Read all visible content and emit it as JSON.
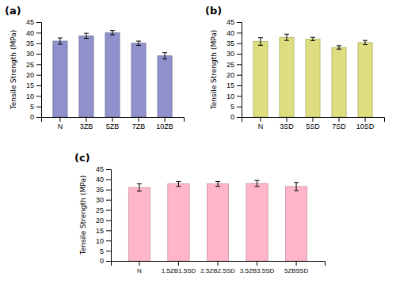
{
  "chart_data": [
    {
      "type": "bar",
      "title": "(a)",
      "ylabel": "Tensile Strength (MPa)",
      "categories": [
        "N",
        "3ZB",
        "5ZB",
        "7ZB",
        "10ZB"
      ],
      "values": [
        36,
        38.5,
        40,
        35,
        29
      ],
      "errors": [
        1.5,
        1.2,
        1.0,
        1.0,
        1.5
      ],
      "color": "#9090CC",
      "ylim": [
        0,
        45
      ],
      "yticks": [
        0,
        5,
        10,
        15,
        20,
        25,
        30,
        35,
        40,
        45
      ]
    },
    {
      "type": "bar",
      "title": "(b)",
      "ylabel": "Tensile Strength (MPa)",
      "categories": [
        "N",
        "3SD",
        "5SD",
        "7SD",
        "10SD"
      ],
      "values": [
        35.8,
        37.8,
        37.0,
        33.0,
        35.3
      ],
      "errors": [
        1.8,
        1.5,
        0.8,
        0.8,
        1.0
      ],
      "color": "#DEDE80",
      "ylim": [
        0,
        45
      ],
      "yticks": [
        0,
        5,
        10,
        15,
        20,
        25,
        30,
        35,
        40,
        45
      ]
    },
    {
      "type": "bar",
      "title": "(c)",
      "ylabel": "Tensile Strength (MPa)",
      "categories": [
        "N",
        "1.5ZB1.5SD",
        "2.5ZB2.5SD",
        "3.5ZB3.5SD",
        "5ZB5SD"
      ],
      "values": [
        36,
        37.8,
        37.8,
        38.0,
        36.5
      ],
      "errors": [
        1.8,
        1.2,
        1.2,
        1.5,
        2.0
      ],
      "color": "#FFB6C8",
      "ylim": [
        0,
        45
      ],
      "yticks": [
        0,
        5,
        10,
        15,
        20,
        25,
        30,
        35,
        40,
        45
      ]
    }
  ]
}
